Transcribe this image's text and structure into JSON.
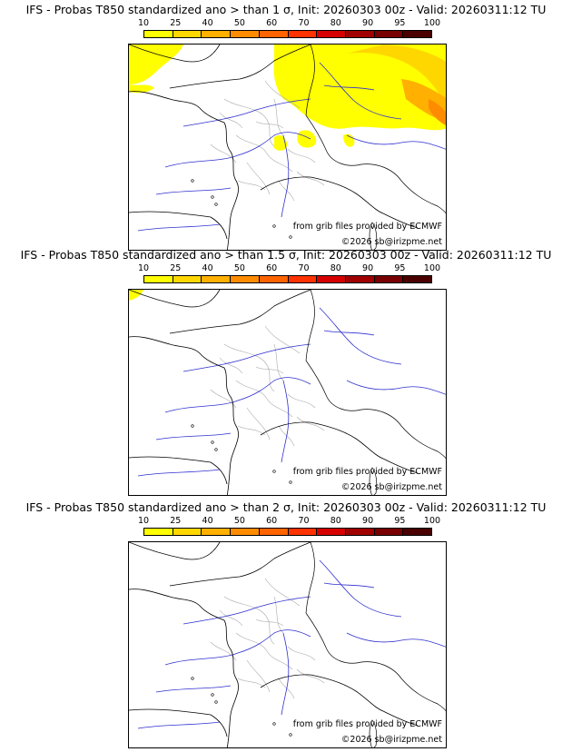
{
  "colors": {
    "bins": [
      "#ffff00",
      "#ffd700",
      "#ffb000",
      "#ff8c00",
      "#ff6400",
      "#ff3200",
      "#d70000",
      "#a00000",
      "#780000",
      "#4a0000"
    ],
    "coast": "#000000",
    "rivers": "#3030d0",
    "borders": "#aaaaaa"
  },
  "scale_ticks": [
    "10",
    "25",
    "40",
    "50",
    "60",
    "70",
    "80",
    "90",
    "95",
    "100"
  ],
  "panels": [
    {
      "title": "IFS - Probas T850  standardized ano > than 1 σ, Init: 20260303 00z - Valid: 20260311:12 TU",
      "source_credit": "from grib files provided by ECMWF",
      "copyright": "©2026 sb@irizpme.net",
      "fill_level": "high"
    },
    {
      "title": "IFS - Probas T850  standardized ano > than 1.5 σ, Init: 20260303 00z - Valid: 20260311:12 TU",
      "source_credit": "from grib files provided by ECMWF",
      "copyright": "©2026 sb@irizpme.net",
      "fill_level": "low"
    },
    {
      "title": "IFS - Probas T850  standardized ano > than 2 σ, Init: 20260303 00z - Valid: 20260311:12 TU",
      "source_credit": "from grib files provided by ECMWF",
      "copyright": "©2026 sb@irizpme.net",
      "fill_level": "none"
    }
  ]
}
